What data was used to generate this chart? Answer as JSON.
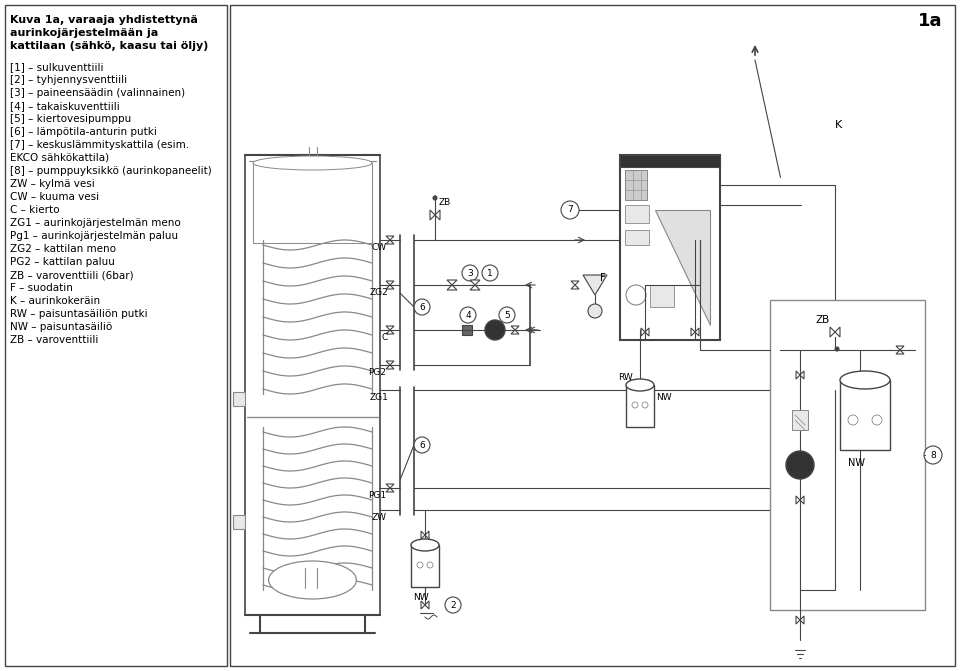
{
  "bg_color": "#ffffff",
  "line_color": "#444444",
  "gray_color": "#888888",
  "light_gray": "#e8e8e8",
  "title_lines": [
    "Kuva 1a, varaaja yhdistettynä",
    "aurinkojärjestelmään ja",
    "kattilaan (sähkö, kaasu tai öljy)"
  ],
  "legend_items": [
    "[1] – sulkuventtiili",
    "[2] – tyhjennysventtiili",
    "[3] – paineensäädin (valinnainen)",
    "[4] – takaiskuventtiili",
    "[5] – kiertovesipumppu",
    "[6] – lämpötila-anturin putki",
    "[7] – keskuslämmityskattila (esim.",
    "EKCO sähkökattila)",
    "[8] – pumppuyksikkö (aurinkopaneelit)",
    "ZW – kylmä vesi",
    "CW – kuuma vesi",
    "C – kierto",
    "ZG1 – aurinkojärjestelmän meno",
    "Pg1 – aurinkojärjestelmän paluu",
    "ZG2 – kattilan meno",
    "PG2 – kattilan paluu",
    "ZB – varoventtiili (6bar)",
    "F – suodatin",
    "K – aurinkokeräin",
    "RW – paisuntasäiliön putki",
    "NW – paisuntasäiliö",
    "ZB – varoventtiili"
  ]
}
